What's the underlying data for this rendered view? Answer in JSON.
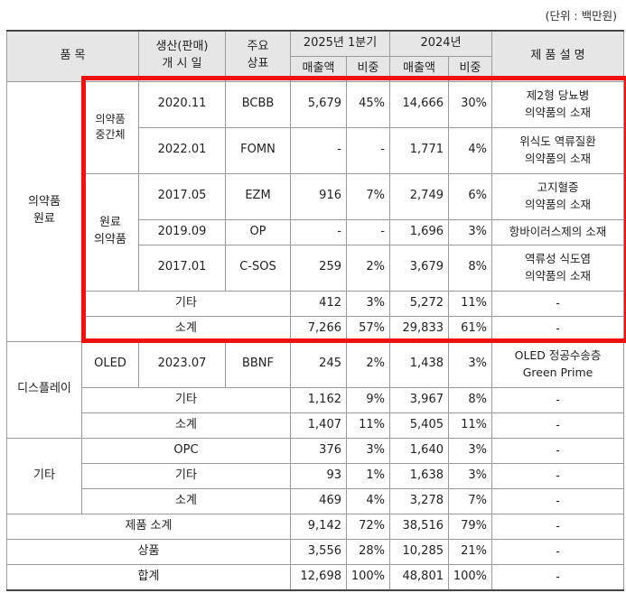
{
  "unit_note": "(단위 : 백만원)",
  "header": {
    "item": "품 목",
    "launch_line1": "생산(판매)",
    "launch_line2": "개 시 일",
    "brand_line1": "주요",
    "brand_line2": "상표",
    "period_2025": "2025년 1분기",
    "period_2024": "2024년",
    "sales": "매출액",
    "share": "비중",
    "desc": "제 품 설 명"
  },
  "groups": {
    "pharma": "의약품\n원료",
    "pharma_mid": "의약품\n중간체",
    "pharma_api": "원료\n의약품",
    "display": "디스플레이",
    "oled": "OLED",
    "other": "기타"
  },
  "rows": {
    "bcbb": {
      "date": "2020.11",
      "brand": "BCBB",
      "s25": "5,679",
      "p25": "45%",
      "s24": "14,666",
      "p24": "30%",
      "desc": "제2형 당뇨병\n의약품의 소재"
    },
    "fomn": {
      "date": "2022.01",
      "brand": "FOMN",
      "s25": "-",
      "p25": "-",
      "s24": "1,771",
      "p24": "4%",
      "desc": "위식도 역류질환\n의약품의 소재"
    },
    "ezm": {
      "date": "2017.05",
      "brand": "EZM",
      "s25": "916",
      "p25": "7%",
      "s24": "2,749",
      "p24": "6%",
      "desc": "고지혈증\n의약품의 소재"
    },
    "op": {
      "date": "2019.09",
      "brand": "OP",
      "s25": "-",
      "p25": "-",
      "s24": "1,696",
      "p24": "3%",
      "desc": "항바이러스제의 소재"
    },
    "csos": {
      "date": "2017.01",
      "brand": "C-SOS",
      "s25": "259",
      "p25": "2%",
      "s24": "3,679",
      "p24": "8%",
      "desc": "역류성 식도염\n의약품의 소재"
    },
    "pharma_etc": {
      "label": "기타",
      "s25": "412",
      "p25": "3%",
      "s24": "5,272",
      "p24": "11%",
      "desc": "-"
    },
    "pharma_sub": {
      "label": "소계",
      "s25": "7,266",
      "p25": "57%",
      "s24": "29,833",
      "p24": "61%",
      "desc": "-"
    },
    "bbnf": {
      "date": "2023.07",
      "brand": "BBNF",
      "s25": "245",
      "p25": "2%",
      "s24": "1,438",
      "p24": "3%",
      "desc": "OLED 정공수송층\nGreen Prime"
    },
    "disp_etc": {
      "label": "기타",
      "s25": "1,162",
      "p25": "9%",
      "s24": "3,967",
      "p24": "8%",
      "desc": "-"
    },
    "disp_sub": {
      "label": "소계",
      "s25": "1,407",
      "p25": "11%",
      "s24": "5,405",
      "p24": "11%",
      "desc": "-"
    },
    "opc": {
      "label": "OPC",
      "s25": "376",
      "p25": "3%",
      "s24": "1,640",
      "p24": "3%",
      "desc": "-"
    },
    "other_etc": {
      "label": "기타",
      "s25": "93",
      "p25": "1%",
      "s24": "1,638",
      "p24": "3%",
      "desc": "-"
    },
    "other_sub": {
      "label": "소계",
      "s25": "469",
      "p25": "4%",
      "s24": "3,278",
      "p24": "7%",
      "desc": "-"
    },
    "product_sub": {
      "label": "제품 소계",
      "s25": "9,142",
      "p25": "72%",
      "s24": "38,516",
      "p24": "79%",
      "desc": "-"
    },
    "goods": {
      "label": "상품",
      "s25": "3,556",
      "p25": "28%",
      "s24": "10,285",
      "p24": "21%",
      "desc": "-"
    },
    "total": {
      "label": "합계",
      "s25": "12,698",
      "p25": "100%",
      "s24": "48,801",
      "p24": "100%",
      "desc": "-"
    }
  }
}
